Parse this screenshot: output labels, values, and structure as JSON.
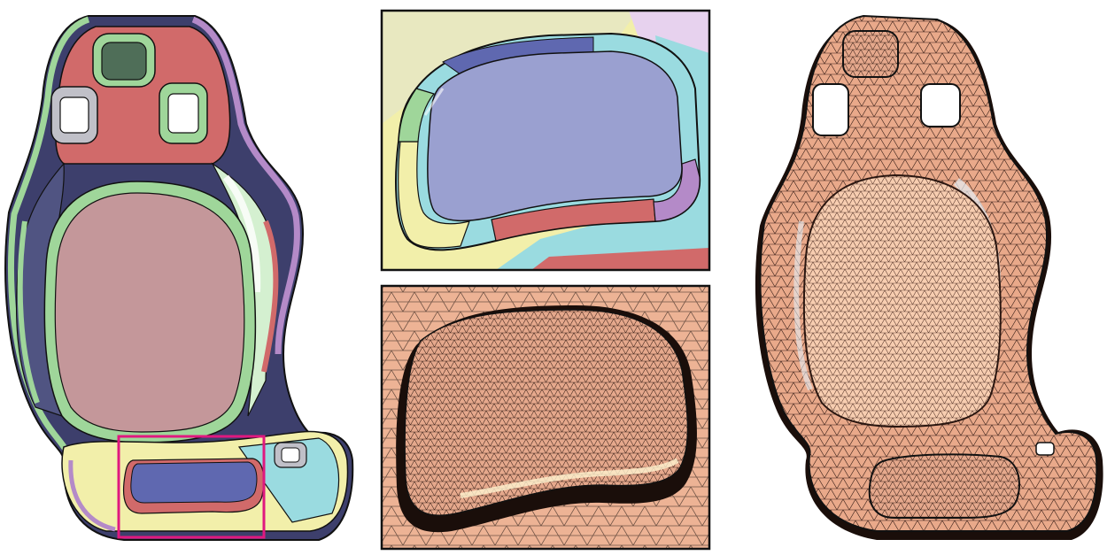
{
  "figure": {
    "panels": [
      {
        "id": "patch-layout",
        "description_visible_text": ""
      },
      {
        "id": "zoom-patches",
        "description_visible_text": ""
      },
      {
        "id": "zoom-mesh",
        "description_visible_text": ""
      },
      {
        "id": "triangle-mesh",
        "description_visible_text": ""
      }
    ]
  },
  "colors": {
    "highlight_box": "#e0187f",
    "panel_border": "#111111",
    "red_patch": "#d16a6a",
    "seat_back_center": "#c4979a",
    "blue_patch": "#9aa0d0",
    "green_patch": "#9fd69a",
    "cyan_patch": "#9adbe0",
    "yellow_patch": "#f2efaa",
    "purple_patch": "#b48ac8",
    "mesh_fill": "#e9a98a",
    "mesh_light": "#f6c8aa",
    "mesh_line": "#3a2018"
  }
}
